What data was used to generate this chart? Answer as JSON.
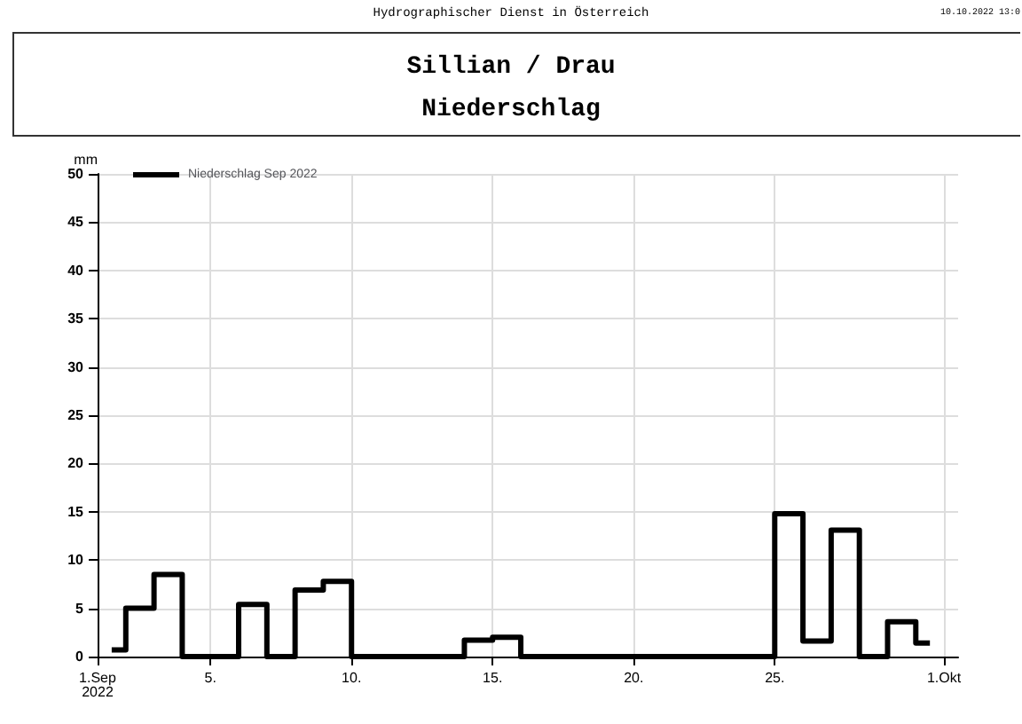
{
  "chart_data": {
    "type": "step",
    "title": "Sillian / Drau",
    "subtitle": "Niederschlag",
    "ylabel": "mm",
    "annotations": [
      "Hydrographischer Dienst in Österreich",
      "10.10.2022 13:0"
    ],
    "x": [
      "2022-09-01T12:00",
      "2022-09-02T12:00",
      "2022-09-03T12:00",
      "2022-09-04T12:00",
      "2022-09-05T12:00",
      "2022-09-06T12:00",
      "2022-09-07T12:00",
      "2022-09-08T12:00",
      "2022-09-09T12:00",
      "2022-09-10T12:00",
      "2022-09-11T12:00",
      "2022-09-12T12:00",
      "2022-09-13T12:00",
      "2022-09-14T12:00",
      "2022-09-15T12:00",
      "2022-09-16T12:00",
      "2022-09-17T12:00",
      "2022-09-18T12:00",
      "2022-09-19T12:00",
      "2022-09-20T12:00",
      "2022-09-21T12:00",
      "2022-09-22T12:00",
      "2022-09-23T12:00",
      "2022-09-24T12:00",
      "2022-09-25T12:00",
      "2022-09-26T12:00",
      "2022-09-27T12:00",
      "2022-09-28T12:00",
      "2022-09-29T12:00",
      "2022-09-30T12:00"
    ],
    "series": [
      {
        "name": "Niederschlag Sep 2022",
        "color": "#000000",
        "values": [
          0.7,
          5.0,
          8.5,
          0,
          0,
          5.4,
          0,
          6.9,
          7.8,
          0,
          0,
          0,
          0,
          1.7,
          2.0,
          0,
          0,
          0,
          0,
          0,
          0,
          0,
          0,
          0,
          14.8,
          1.6,
          13.1,
          0,
          3.6,
          1.4
        ]
      }
    ],
    "xlim": [
      "2022-09-01",
      "2022-10-01T12:00"
    ],
    "xticks": [
      {
        "value": "2022-09-01",
        "label": "1.Sep\n2022"
      },
      {
        "value": "2022-09-05",
        "label": "5."
      },
      {
        "value": "2022-09-10",
        "label": "10."
      },
      {
        "value": "2022-09-15",
        "label": "15."
      },
      {
        "value": "2022-09-20",
        "label": "20."
      },
      {
        "value": "2022-09-25",
        "label": "25."
      },
      {
        "value": "2022-10-01",
        "label": "1.Okt"
      }
    ],
    "ylim": [
      0,
      50
    ],
    "yticks": [
      0,
      5,
      10,
      15,
      20,
      25,
      30,
      35,
      40,
      45,
      50
    ],
    "grid": true,
    "legend": "top left",
    "line_style": "solid",
    "marker": "none"
  }
}
